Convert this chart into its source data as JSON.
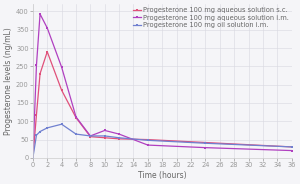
{
  "title": "",
  "xlabel": "Time (hours)",
  "ylabel": "Progesterone levels (ng/mL)",
  "xlim": [
    0,
    36
  ],
  "ylim": [
    0,
    420
  ],
  "yticks": [
    0,
    50,
    100,
    150,
    200,
    250,
    300,
    350,
    400
  ],
  "xticks": [
    0,
    2,
    4,
    6,
    8,
    10,
    12,
    14,
    16,
    18,
    20,
    22,
    24,
    26,
    28,
    30,
    32,
    34,
    36
  ],
  "series": [
    {
      "label": "Progesterone 100 mg aqueous solution s.c.",
      "color": "#e0507a",
      "marker": "s",
      "x": [
        0,
        0.5,
        1,
        2,
        4,
        6,
        8,
        10,
        12,
        16,
        24,
        36
      ],
      "y": [
        0,
        118,
        230,
        290,
        185,
        110,
        58,
        55,
        52,
        50,
        42,
        30
      ]
    },
    {
      "label": "Progesterone 100 mg aqueous solution i.m.",
      "color": "#b040c0",
      "marker": "s",
      "x": [
        0,
        0.5,
        1,
        2,
        4,
        6,
        8,
        10,
        12,
        16,
        24,
        36
      ],
      "y": [
        0,
        253,
        393,
        355,
        248,
        112,
        60,
        75,
        65,
        35,
        28,
        20
      ]
    },
    {
      "label": "Progesterone 100 mg oil solution i.m.",
      "color": "#7080d0",
      "marker": "s",
      "x": [
        0,
        0.5,
        1,
        2,
        4,
        6,
        8,
        10,
        12,
        16,
        24,
        36
      ],
      "y": [
        0,
        62,
        72,
        82,
        92,
        65,
        60,
        60,
        55,
        48,
        40,
        30
      ]
    }
  ],
  "background_color": "#f5f5f8",
  "grid_color": "#d8d8e0",
  "legend_fontsize": 4.8,
  "axis_label_fontsize": 5.5,
  "tick_fontsize": 4.8,
  "tick_color": "#999999",
  "label_color": "#666666"
}
